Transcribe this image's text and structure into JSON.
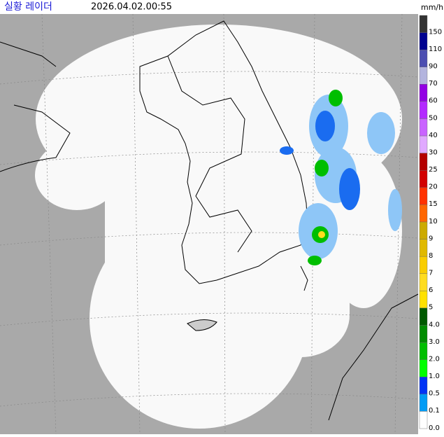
{
  "header": {
    "title": "실황 레이더",
    "timestamp": "2026.04.02.00:55",
    "unit": "mm/h"
  },
  "legend": {
    "levels": [
      {
        "label": "150",
        "color": "#333333"
      },
      {
        "label": "110",
        "color": "#000390"
      },
      {
        "label": "90",
        "color": "#4c4eb1"
      },
      {
        "label": "70",
        "color": "#b3b4de"
      },
      {
        "label": "60",
        "color": "#9300e4"
      },
      {
        "label": "50",
        "color": "#b329ff"
      },
      {
        "label": "40",
        "color": "#c963ff"
      },
      {
        "label": "30",
        "color": "#e0a9ff"
      },
      {
        "label": "25",
        "color": "#b40000"
      },
      {
        "label": "20",
        "color": "#d20000"
      },
      {
        "label": "15",
        "color": "#ff3200"
      },
      {
        "label": "10",
        "color": "#ff6600"
      },
      {
        "label": "9",
        "color": "#ccaa00"
      },
      {
        "label": "8",
        "color": "#e0b900"
      },
      {
        "label": "7",
        "color": "#f9cd00"
      },
      {
        "label": "6",
        "color": "#ffdc1f"
      },
      {
        "label": "5",
        "color": "#ffe100"
      },
      {
        "label": "4.0",
        "color": "#005a00"
      },
      {
        "label": "3.0",
        "color": "#008c00"
      },
      {
        "label": "2.0",
        "color": "#00be00"
      },
      {
        "label": "1.0",
        "color": "#00ff00"
      },
      {
        "label": "0.5",
        "color": "#0033f5"
      },
      {
        "label": "0.1",
        "color": "#009bf5"
      },
      {
        "label": "0.0",
        "color": "#ffffff"
      }
    ]
  }
}
